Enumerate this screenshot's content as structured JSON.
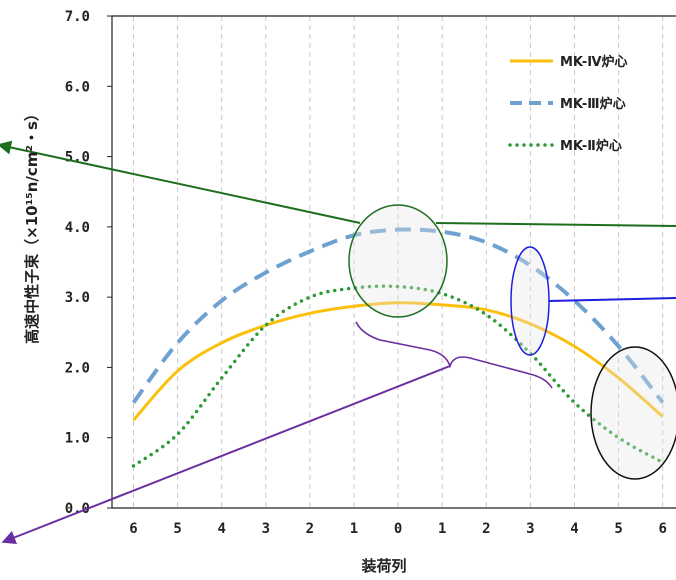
{
  "chart_data": {
    "type": "line",
    "xlabel": "装荷列",
    "ylabel": "高速中性子束（×10¹⁵n/cm²・s）",
    "x_tick_labels": [
      "6",
      "5",
      "4",
      "3",
      "2",
      "1",
      "0",
      "1",
      "2",
      "3",
      "4",
      "5",
      "6"
    ],
    "x": [
      -6,
      -5,
      -4,
      -3,
      -2,
      -1,
      0,
      1,
      2,
      3,
      4,
      5,
      6
    ],
    "ylim": [
      0,
      7
    ],
    "y_tick_labels": [
      "0.0",
      "1.0",
      "2.0",
      "3.0",
      "4.0",
      "5.0",
      "6.0",
      "7.0"
    ],
    "grid": "vertical",
    "legend_position": "top-right",
    "series": [
      {
        "name": "MK-Ⅳ炉心",
        "color": "#fbbf0d",
        "style": "solid",
        "values": [
          1.25,
          1.95,
          2.35,
          2.6,
          2.77,
          2.87,
          2.92,
          2.89,
          2.82,
          2.62,
          2.3,
          1.85,
          1.3
        ]
      },
      {
        "name": "MK-Ⅲ炉心",
        "color": "#6fa1d0",
        "style": "dashed",
        "values": [
          1.5,
          2.35,
          2.95,
          3.35,
          3.65,
          3.88,
          3.96,
          3.93,
          3.78,
          3.45,
          2.95,
          2.3,
          1.5
        ]
      },
      {
        "name": "MK-Ⅱ炉心",
        "color": "#2e9a36",
        "style": "dotted",
        "values": [
          0.6,
          1.05,
          1.85,
          2.6,
          3.0,
          3.13,
          3.15,
          3.05,
          2.75,
          2.2,
          1.5,
          1.0,
          0.65
        ]
      }
    ]
  }
}
